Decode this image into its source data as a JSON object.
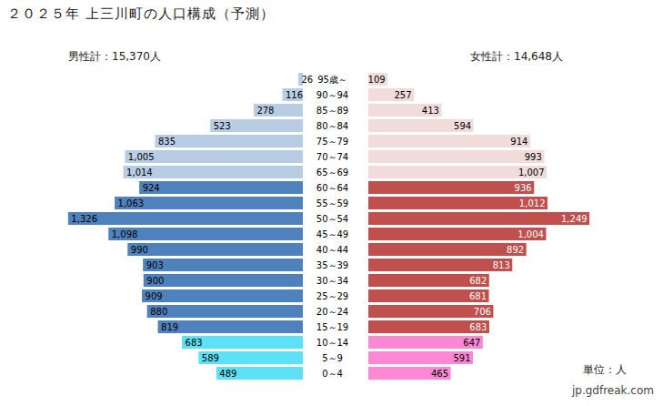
{
  "chart_data": {
    "type": "bar",
    "orientation": "horizontal",
    "title": "２０２５年 上三川町の人口構成（予測）",
    "categories": [
      "95歳～",
      "90～94",
      "85～89",
      "80～84",
      "75～79",
      "70～74",
      "65～69",
      "60～64",
      "55～59",
      "50～54",
      "45～49",
      "40～44",
      "35～39",
      "30～34",
      "25～29",
      "20～24",
      "15～19",
      "10～14",
      "5～9",
      "0～4"
    ],
    "series": [
      {
        "name": "男性計：15,370人",
        "values": [
          26,
          116,
          278,
          523,
          835,
          1005,
          1014,
          924,
          1063,
          1326,
          1098,
          990,
          903,
          900,
          909,
          880,
          819,
          683,
          589,
          489
        ],
        "value_labels": [
          "26",
          "116",
          "278",
          "523",
          "835",
          "1,005",
          "1,014",
          "924",
          "1,063",
          "1,326",
          "1,098",
          "990",
          "903",
          "900",
          "909",
          "880",
          "819",
          "683",
          "589",
          "489"
        ],
        "colors": [
          "#b8cce4",
          "#b8cce4",
          "#b8cce4",
          "#b8cce4",
          "#b8cce4",
          "#b8cce4",
          "#b8cce4",
          "#4f81bd",
          "#4f81bd",
          "#4f81bd",
          "#4f81bd",
          "#4f81bd",
          "#4f81bd",
          "#4f81bd",
          "#4f81bd",
          "#4f81bd",
          "#4f81bd",
          "#5ce1f7",
          "#5ce1f7",
          "#5ce1f7"
        ]
      },
      {
        "name": "女性計：14,648人",
        "values": [
          109,
          257,
          413,
          594,
          914,
          993,
          1007,
          936,
          1012,
          1249,
          1004,
          892,
          813,
          682,
          681,
          706,
          683,
          647,
          591,
          465
        ],
        "value_labels": [
          "109",
          "257",
          "413",
          "594",
          "914",
          "993",
          "1,007",
          "936",
          "1,012",
          "1,249",
          "1,004",
          "892",
          "813",
          "682",
          "681",
          "706",
          "683",
          "647",
          "591",
          "465"
        ],
        "colors": [
          "#f2dcdb",
          "#f2dcdb",
          "#f2dcdb",
          "#f2dcdb",
          "#f2dcdb",
          "#f2dcdb",
          "#f2dcdb",
          "#c0504d",
          "#c0504d",
          "#c0504d",
          "#c0504d",
          "#c0504d",
          "#c0504d",
          "#c0504d",
          "#c0504d",
          "#c0504d",
          "#c0504d",
          "#ff88d5",
          "#ff88d5",
          "#ff88d5"
        ]
      }
    ],
    "xlim": [
      0,
      1500
    ],
    "data_labels": true,
    "tick_labels": "y",
    "annotations": [
      "単位：人",
      "jp.gdfreak.com"
    ]
  }
}
